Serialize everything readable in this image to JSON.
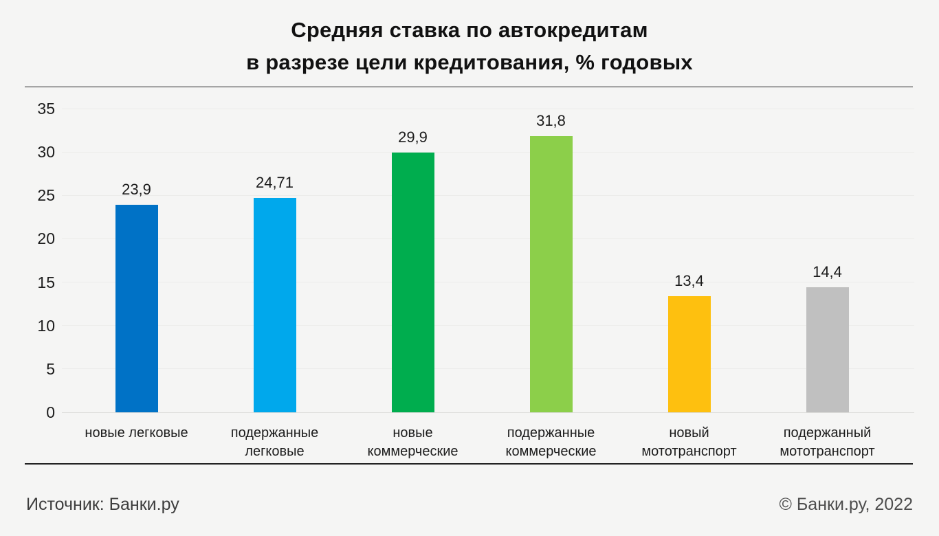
{
  "header": {
    "title_line1": "Средняя ставка по автокредитам",
    "title_line2": "в разрезе цели кредитования, % годовых"
  },
  "chart_data": {
    "type": "bar",
    "title": "Средняя ставка по автокредитам в разрезе цели кредитования, % годовых",
    "categories": [
      "новые легковые",
      "подержанные легковые",
      "новые коммерческие",
      "подержанные коммерческие",
      "новый мототранспорт",
      "подержанный мототранспорт"
    ],
    "category_lines": [
      [
        "новые легковые"
      ],
      [
        "подержанные",
        "легковые"
      ],
      [
        "новые",
        "коммерческие"
      ],
      [
        "подержанные",
        "коммерческие"
      ],
      [
        "новый",
        "мототранспорт"
      ],
      [
        "подержанный",
        "мототранспорт"
      ]
    ],
    "values": [
      23.9,
      24.71,
      29.9,
      31.8,
      13.4,
      14.4
    ],
    "value_labels": [
      "23,9",
      "24,71",
      "29,9",
      "31,8",
      "13,4",
      "14,4"
    ],
    "bar_colors": [
      "#0072c6",
      "#00a8ec",
      "#00ad4e",
      "#8ccf4a",
      "#fec00f",
      "#c0c0c0"
    ],
    "xlabel": "",
    "ylabel": "",
    "ylim": [
      0,
      35
    ],
    "yticks": [
      0,
      5,
      10,
      15,
      20,
      25,
      30,
      35
    ],
    "grid": true,
    "legend_position": "none"
  },
  "footer": {
    "source": "Источник: Банки.ру",
    "copyright": "© Банки.ру, 2022"
  },
  "colors": {
    "background": "#f5f5f4",
    "grid": "#ececea",
    "baseline": "#dcdcda",
    "text": "#1c1c1c"
  }
}
